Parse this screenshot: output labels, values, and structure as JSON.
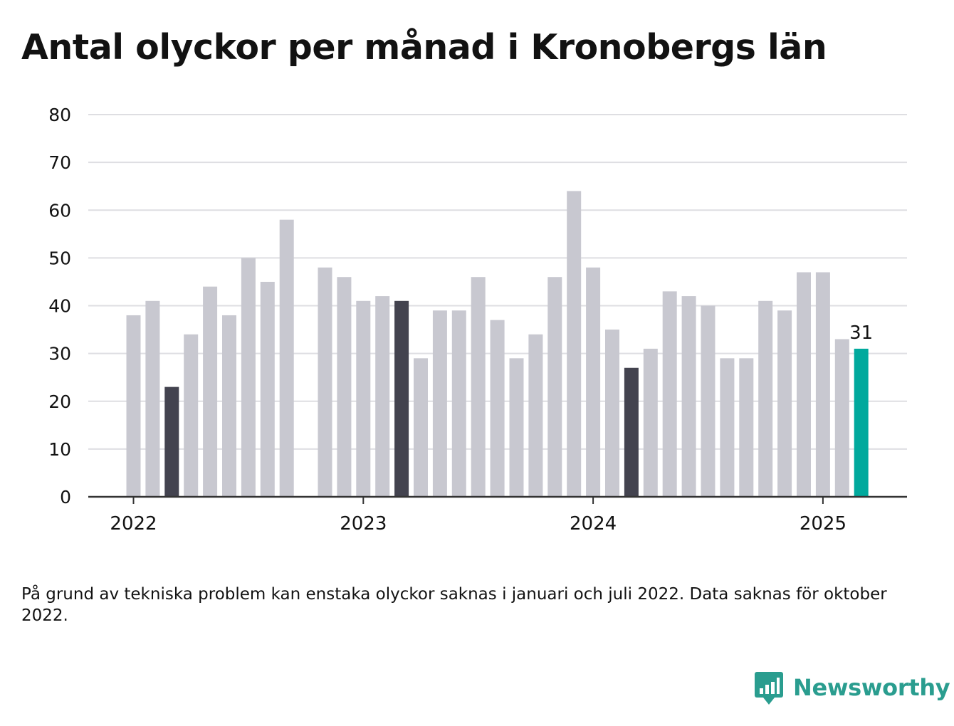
{
  "title": "Antal olyckor per månad i Kronobergs län",
  "note": "På grund av tekniska problem kan enstaka olyckor saknas i januari och juli 2022. Data saknas för oktober 2022.",
  "brand": {
    "name": "Newsworthy",
    "icon": "bar-chart-speech-bubble-icon"
  },
  "colors": {
    "bar": "#c8c8d0",
    "highlight": "#43434f",
    "latest": "#00a99d",
    "grid": "#dedee2",
    "axis": "#333333",
    "text": "#121212",
    "brand": "#2a9d8f"
  },
  "chart_data": {
    "type": "bar",
    "x_ticks": [
      "2022",
      "2023",
      "2024",
      "2025"
    ],
    "y_ticks": [
      "0",
      "10",
      "20",
      "30",
      "40",
      "50",
      "60",
      "70",
      "80"
    ],
    "ylim": [
      0,
      80
    ],
    "grid": true,
    "latest_label": "31",
    "months": [
      "2022-01",
      "2022-02",
      "2022-03",
      "2022-04",
      "2022-05",
      "2022-06",
      "2022-07",
      "2022-08",
      "2022-09",
      "2022-10",
      "2022-11",
      "2022-12",
      "2023-01",
      "2023-02",
      "2023-03",
      "2023-04",
      "2023-05",
      "2023-06",
      "2023-07",
      "2023-08",
      "2023-09",
      "2023-10",
      "2023-11",
      "2023-12",
      "2024-01",
      "2024-02",
      "2024-03",
      "2024-04",
      "2024-05",
      "2024-06",
      "2024-07",
      "2024-08",
      "2024-09",
      "2024-10",
      "2024-11",
      "2024-12",
      "2025-01",
      "2025-02",
      "2025-03"
    ],
    "values": [
      38,
      41,
      23,
      34,
      44,
      38,
      50,
      45,
      58,
      null,
      48,
      46,
      41,
      42,
      41,
      29,
      39,
      39,
      46,
      37,
      29,
      34,
      46,
      64,
      48,
      35,
      27,
      31,
      43,
      42,
      40,
      29,
      29,
      41,
      39,
      47,
      47,
      33,
      31
    ],
    "highlighted_months": [
      "2022-03",
      "2023-03",
      "2024-03",
      "2025-03"
    ]
  }
}
